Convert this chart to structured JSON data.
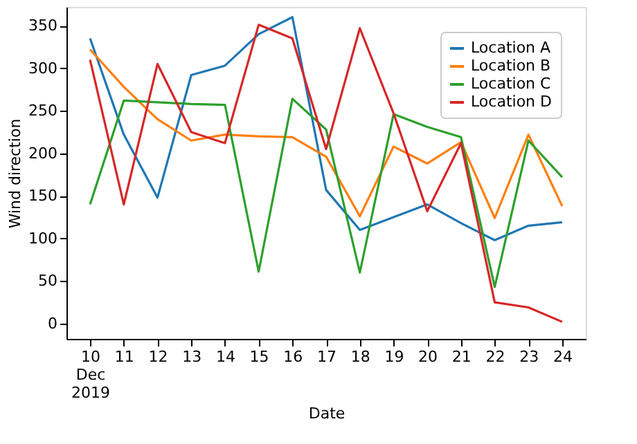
{
  "chart_data": {
    "type": "line",
    "xlabel": "Date",
    "ylabel": "Wind direction",
    "x": [
      "2019-12-10",
      "2019-12-11",
      "2019-12-12",
      "2019-12-13",
      "2019-12-14",
      "2019-12-15",
      "2019-12-16",
      "2019-12-17",
      "2019-12-18",
      "2019-12-19",
      "2019-12-20",
      "2019-12-21",
      "2019-12-22",
      "2019-12-23",
      "2019-12-24"
    ],
    "series": [
      {
        "name": "Location A",
        "color": "#1f77b4",
        "values": [
          335,
          222,
          148,
          292,
          303,
          340,
          360,
          157,
          110,
          125,
          140,
          118,
          98,
          115,
          119
        ]
      },
      {
        "name": "Location B",
        "color": "#ff7f0e",
        "values": [
          322,
          278,
          240,
          215,
          222,
          220,
          219,
          196,
          126,
          208,
          188,
          213,
          124,
          222,
          138
        ]
      },
      {
        "name": "Location C",
        "color": "#2ca02c",
        "values": [
          140,
          262,
          260,
          258,
          257,
          61,
          264,
          228,
          60,
          246,
          231,
          219,
          43,
          215,
          172
        ]
      },
      {
        "name": "Location D",
        "color": "#d62728",
        "values": [
          310,
          140,
          305,
          225,
          212,
          351,
          335,
          205,
          347,
          247,
          132,
          212,
          25,
          19,
          2
        ]
      }
    ],
    "xlim": [
      "2019-12-09T07:12",
      "2019-12-24T16:48"
    ],
    "xticks": [
      {
        "value": "2019-12-10",
        "label": "10\nDec\n2019"
      },
      {
        "value": "2019-12-11",
        "label": "11"
      },
      {
        "value": "2019-12-12",
        "label": "12"
      },
      {
        "value": "2019-12-13",
        "label": "13"
      },
      {
        "value": "2019-12-14",
        "label": "14"
      },
      {
        "value": "2019-12-15",
        "label": "15"
      },
      {
        "value": "2019-12-16",
        "label": "16"
      },
      {
        "value": "2019-12-17",
        "label": "17"
      },
      {
        "value": "2019-12-18",
        "label": "18"
      },
      {
        "value": "2019-12-19",
        "label": "19"
      },
      {
        "value": "2019-12-20",
        "label": "20"
      },
      {
        "value": "2019-12-21",
        "label": "21"
      },
      {
        "value": "2019-12-22",
        "label": "22"
      },
      {
        "value": "2019-12-23",
        "label": "23"
      },
      {
        "value": "2019-12-24",
        "label": "24"
      }
    ],
    "ylim": [
      -18,
      372
    ],
    "yticks": [
      0,
      50,
      100,
      150,
      200,
      250,
      300,
      350
    ],
    "grid": false,
    "legend": "top right",
    "line_style": "solid",
    "marker": "none"
  }
}
